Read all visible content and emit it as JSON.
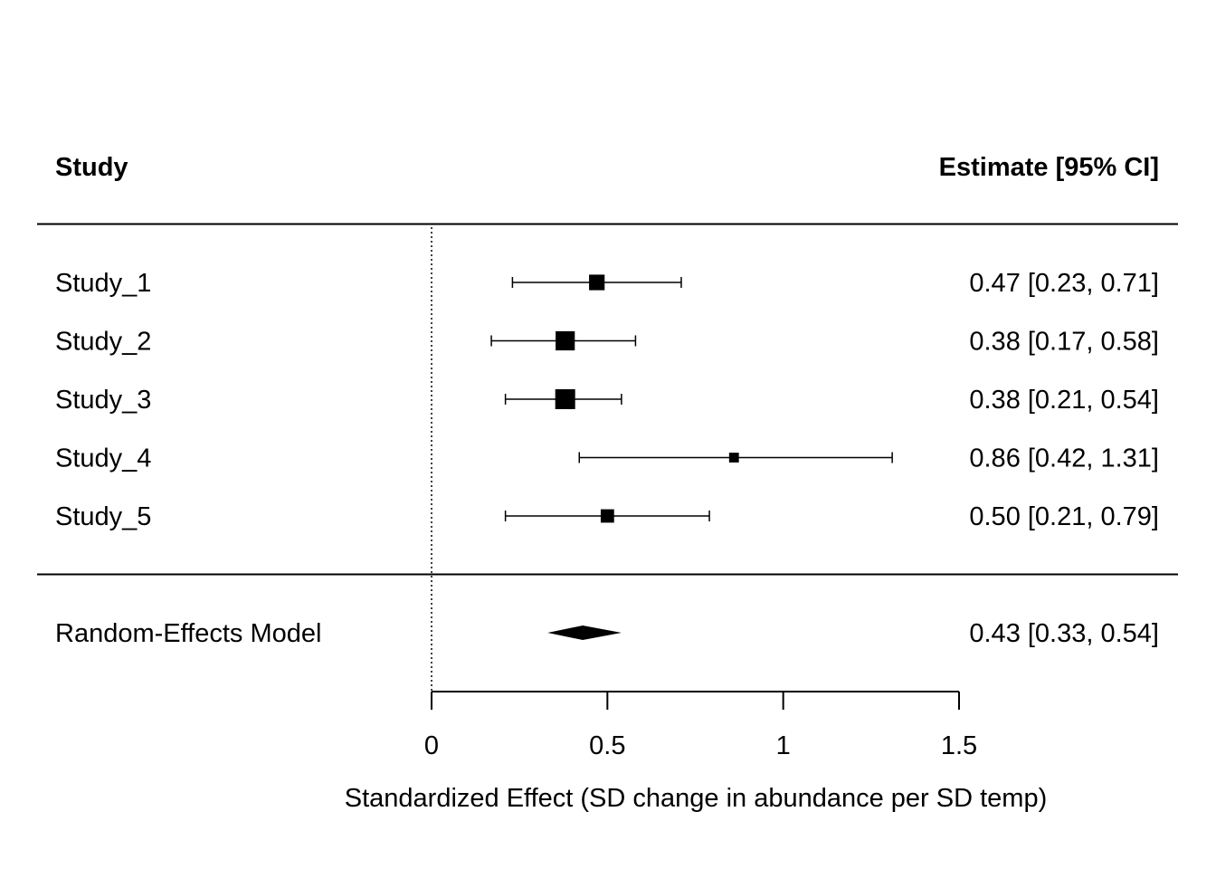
{
  "header": {
    "study_label": "Study",
    "estimate_label": "Estimate [95% CI]"
  },
  "chart_data": {
    "type": "forest",
    "xlabel": "Standardized Effect (SD change in abundance per SD temp)",
    "xlim": [
      0,
      1.5
    ],
    "xticks": [
      0,
      0.5,
      1,
      1.5
    ],
    "xtick_labels": [
      "0",
      "0.5",
      "1",
      "1.5"
    ],
    "reference_line": 0,
    "studies": [
      {
        "label": "Study_1",
        "estimate": 0.47,
        "ci_low": 0.23,
        "ci_high": 0.71,
        "text": "0.47 [0.23, 0.71]",
        "weight": 0.7
      },
      {
        "label": "Study_2",
        "estimate": 0.38,
        "ci_low": 0.17,
        "ci_high": 0.58,
        "text": "0.38 [0.17, 0.58]",
        "weight": 0.95
      },
      {
        "label": "Study_3",
        "estimate": 0.38,
        "ci_low": 0.21,
        "ci_high": 0.54,
        "text": "0.38 [0.21, 0.54]",
        "weight": 1.0
      },
      {
        "label": "Study_4",
        "estimate": 0.86,
        "ci_low": 0.42,
        "ci_high": 1.31,
        "text": "0.86 [0.42, 1.31]",
        "weight": 0.3
      },
      {
        "label": "Study_5",
        "estimate": 0.5,
        "ci_low": 0.21,
        "ci_high": 0.79,
        "text": "0.50 [0.21, 0.79]",
        "weight": 0.55
      }
    ],
    "summary": {
      "label": "Random-Effects Model",
      "estimate": 0.43,
      "ci_low": 0.33,
      "ci_high": 0.54,
      "text": "0.43 [0.33, 0.54]"
    }
  }
}
